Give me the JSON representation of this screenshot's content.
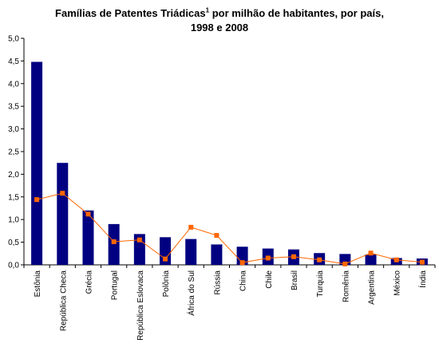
{
  "chart_data": {
    "type": "bar",
    "title_line1": "Famílias de Patentes Triádicas",
    "title_sup": "1",
    "title_line1_end": " por milhão de habitantes, por país,",
    "title_line2": "1998 e 2008",
    "categories": [
      "Estônia",
      "República Checa",
      "Grécia",
      "Portugal",
      "República Eslovaca",
      "Polônia",
      "África do Sul",
      "Rússia",
      "China",
      "Chile",
      "Brasil",
      "Turquia",
      "Romênia",
      "Argentina",
      "México",
      "Índia"
    ],
    "series": [
      {
        "type": "bar",
        "values": [
          4.48,
          2.25,
          1.2,
          0.9,
          0.68,
          0.61,
          0.57,
          0.45,
          0.4,
          0.36,
          0.34,
          0.26,
          0.24,
          0.23,
          0.15,
          0.14
        ]
      },
      {
        "type": "line",
        "values": [
          1.44,
          1.58,
          1.12,
          0.51,
          0.55,
          0.13,
          0.83,
          0.65,
          0.05,
          0.15,
          0.18,
          0.11,
          0.02,
          0.26,
          0.11,
          0.06
        ]
      }
    ],
    "ylim": [
      0,
      5
    ],
    "yticks": [
      "0,0",
      "0,5",
      "1,0",
      "1,5",
      "2,0",
      "2,5",
      "3,0",
      "3,5",
      "4,0",
      "4,5",
      "5,0"
    ],
    "grid": false,
    "legend": "none",
    "colors": {
      "bar": "#000080",
      "line": "#ff6600",
      "marker": "#ff6600",
      "axis": "#000000"
    }
  }
}
